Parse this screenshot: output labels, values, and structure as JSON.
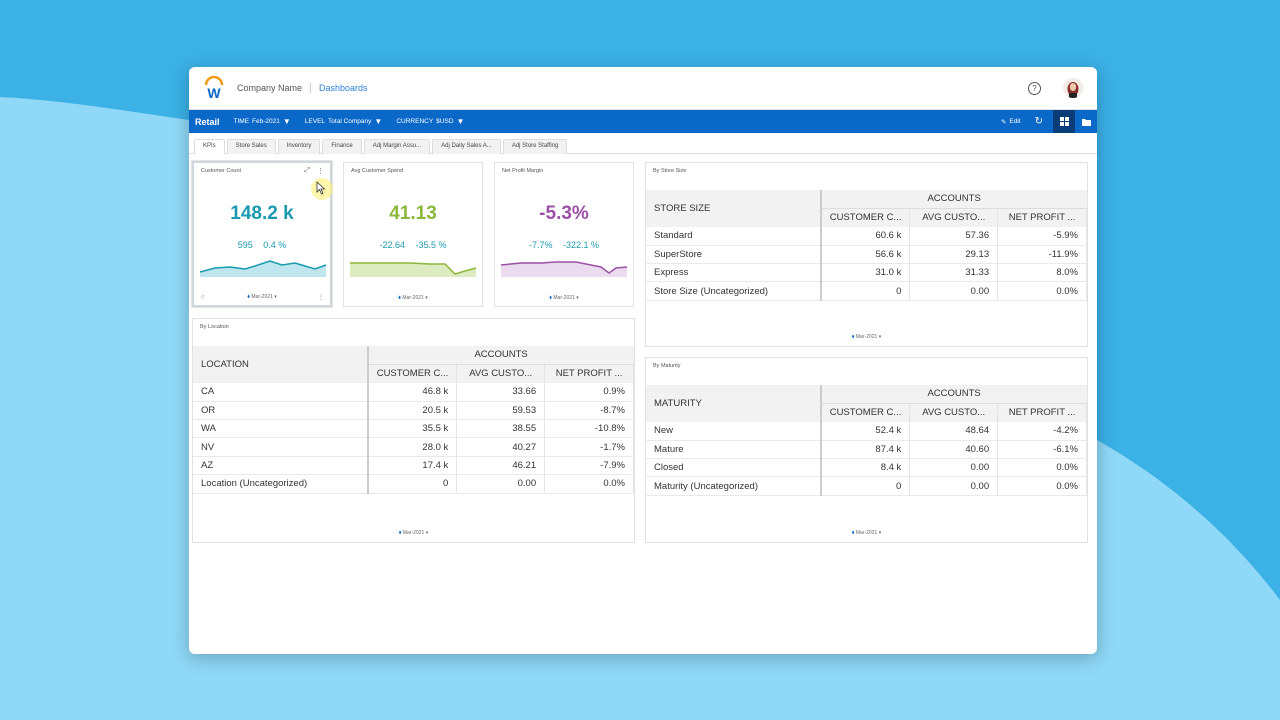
{
  "header": {
    "company": "Company Name",
    "dashboards_link": "Dashboards",
    "help_icon": "?"
  },
  "toolbar": {
    "app_name": "Retail",
    "filters": [
      {
        "label": "TIME",
        "value": "Feb-2021"
      },
      {
        "label": "LEVEL",
        "value": "Total Company"
      },
      {
        "label": "CURRENCY",
        "value": "$USD"
      }
    ],
    "edit_label": "Edit"
  },
  "tabs": [
    "KPIs",
    "Store Sales",
    "Inventory",
    "Finance",
    "Adj Margin Assu...",
    "Adj Daily Sales A...",
    "Adj Store Staffing"
  ],
  "kpis": [
    {
      "title": "Customer Count",
      "value": "148.2 k",
      "sub1": "595",
      "sub2": "0.4 %",
      "date": "Mar-2021",
      "color": "#1a9ab0"
    },
    {
      "title": "Avg Customer Spend",
      "value": "41.13",
      "sub1": "-22.64",
      "sub2": "-35.5 %",
      "date": "Mar-2021",
      "color": "#8bb83a"
    },
    {
      "title": "Net Profit Margin",
      "value": "-5.3%",
      "sub1": "-7.7%",
      "sub2": "-322.1 %",
      "date": "Mar-2021",
      "color": "#9b4fa6"
    }
  ],
  "store_size": {
    "title": "By Store Size",
    "row_header": "STORE SIZE",
    "group_header": "ACCOUNTS",
    "columns": [
      "CUSTOMER C...",
      "AVG CUSTO...",
      "NET PROFIT ..."
    ],
    "rows": [
      {
        "label": "Standard",
        "v": [
          "60.6 k",
          "57.36",
          "-5.9%"
        ]
      },
      {
        "label": "SuperStore",
        "v": [
          "56.6 k",
          "29.13",
          "-11.9%"
        ]
      },
      {
        "label": "Express",
        "v": [
          "31.0 k",
          "31.33",
          "8.0%"
        ]
      },
      {
        "label": "Store Size (Uncategorized)",
        "v": [
          "0",
          "0.00",
          "0.0%"
        ]
      }
    ],
    "date": "Mar-2021"
  },
  "location": {
    "title": "By Location",
    "row_header": "LOCATION",
    "group_header": "ACCOUNTS",
    "columns": [
      "CUSTOMER C...",
      "AVG CUSTO...",
      "NET PROFIT ..."
    ],
    "rows": [
      {
        "label": "CA",
        "v": [
          "46.8 k",
          "33.66",
          "0.9%"
        ]
      },
      {
        "label": "OR",
        "v": [
          "20.5 k",
          "59.53",
          "-8.7%"
        ]
      },
      {
        "label": "WA",
        "v": [
          "35.5 k",
          "38.55",
          "-10.8%"
        ]
      },
      {
        "label": "NV",
        "v": [
          "28.0 k",
          "40.27",
          "-1.7%"
        ]
      },
      {
        "label": "AZ",
        "v": [
          "17.4 k",
          "46.21",
          "-7.9%"
        ]
      },
      {
        "label": "Location (Uncategorized)",
        "v": [
          "0",
          "0.00",
          "0.0%"
        ]
      }
    ],
    "date": "Mar-2021"
  },
  "maturity": {
    "title": "By Maturity",
    "row_header": "MATURITY",
    "group_header": "ACCOUNTS",
    "columns": [
      "CUSTOMER C...",
      "AVG CUSTO...",
      "NET PROFIT ..."
    ],
    "rows": [
      {
        "label": "New",
        "v": [
          "52.4 k",
          "48.64",
          "-4.2%"
        ]
      },
      {
        "label": "Mature",
        "v": [
          "87.4 k",
          "40.60",
          "-6.1%"
        ]
      },
      {
        "label": "Closed",
        "v": [
          "8.4 k",
          "0.00",
          "0.0%"
        ]
      },
      {
        "label": "Maturity (Uncategorized)",
        "v": [
          "0",
          "0.00",
          "0.0%"
        ]
      }
    ],
    "date": "Mar-2021"
  }
}
